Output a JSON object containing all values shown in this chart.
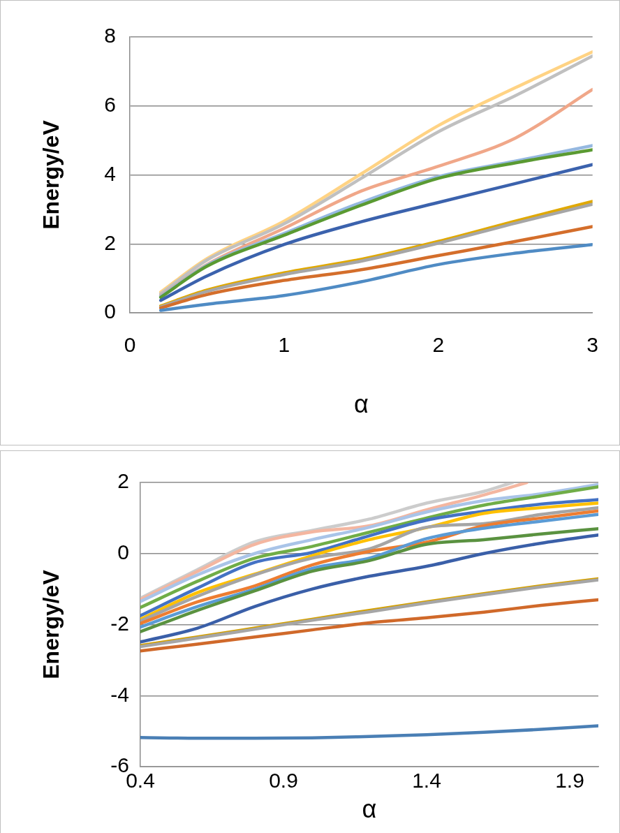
{
  "chart_data": [
    {
      "type": "line",
      "xlabel": "α",
      "ylabel": "Energy/eV",
      "x": [
        0.2,
        0.5,
        1,
        1.5,
        2,
        2.5,
        3
      ],
      "xlim": [
        0,
        3
      ],
      "xticks": [
        0,
        1,
        2,
        3
      ],
      "ylim": [
        0,
        8
      ],
      "yticks": [
        0,
        2,
        4,
        6,
        8
      ],
      "grid": "y",
      "marker": "none",
      "series": [
        {
          "color": "#4f8bc4",
          "values": [
            0.07,
            0.25,
            0.5,
            0.9,
            1.4,
            1.73,
            1.98
          ]
        },
        {
          "color": "#d46e2b",
          "values": [
            0.14,
            0.53,
            0.94,
            1.25,
            1.66,
            2.07,
            2.5
          ]
        },
        {
          "color": "#a6a6a6",
          "values": [
            0.17,
            0.62,
            1.11,
            1.5,
            2.02,
            2.6,
            3.15
          ]
        },
        {
          "color": "#e0a800",
          "values": [
            0.2,
            0.66,
            1.16,
            1.55,
            2.07,
            2.66,
            3.23
          ]
        },
        {
          "color": "#3b62ad",
          "values": [
            0.36,
            1.07,
            1.98,
            2.64,
            3.2,
            3.75,
            4.3
          ]
        },
        {
          "color": "#5a9a32",
          "values": [
            0.45,
            1.35,
            2.25,
            3.12,
            3.9,
            4.35,
            4.73
          ]
        },
        {
          "color": "#95b8e0",
          "values": [
            0.48,
            1.38,
            2.3,
            3.2,
            3.95,
            4.4,
            4.85
          ]
        },
        {
          "color": "#f0a789",
          "values": [
            0.5,
            1.4,
            2.45,
            3.53,
            4.25,
            5.07,
            6.48
          ]
        },
        {
          "color": "#c0c0c0",
          "values": [
            0.55,
            1.53,
            2.58,
            3.9,
            5.25,
            6.3,
            7.45
          ]
        },
        {
          "color": "#ffd384",
          "values": [
            0.6,
            1.57,
            2.66,
            4.03,
            5.43,
            6.53,
            7.57
          ]
        }
      ]
    },
    {
      "type": "line",
      "xlabel": "α",
      "ylabel": "Energy/eV",
      "x": [
        0.4,
        0.6,
        0.8,
        1.0,
        1.2,
        1.4,
        1.6,
        1.8,
        2.0
      ],
      "xlim": [
        0.4,
        2.0
      ],
      "xticks": [
        0.4,
        0.9,
        1.4,
        1.9
      ],
      "ylim": [
        -6,
        2
      ],
      "yticks": [
        -6,
        -4,
        -2,
        0,
        2
      ],
      "grid": "y",
      "marker": "none",
      "series": [
        {
          "color": "#4a7fb5",
          "values": [
            -5.18,
            -5.2,
            -5.2,
            -5.19,
            -5.15,
            -5.1,
            -5.03,
            -4.95,
            -4.85
          ]
        },
        {
          "color": "#d0692a",
          "values": [
            -2.74,
            -2.55,
            -2.35,
            -2.15,
            -1.95,
            -1.81,
            -1.65,
            -1.46,
            -1.3
          ]
        },
        {
          "color": "#a6a6a6",
          "values": [
            -2.62,
            -2.38,
            -2.13,
            -1.88,
            -1.64,
            -1.39,
            -1.16,
            -0.94,
            -0.74
          ]
        },
        {
          "color": "#d4a000",
          "values": [
            -2.59,
            -2.35,
            -2.1,
            -1.85,
            -1.6,
            -1.36,
            -1.13,
            -0.91,
            -0.71
          ]
        },
        {
          "color": "#3a5fa8",
          "values": [
            -2.49,
            -2.1,
            -1.49,
            -1.0,
            -0.64,
            -0.36,
            0.0,
            0.29,
            0.52
          ]
        },
        {
          "color": "#5a9240",
          "values": [
            -2.2,
            -1.6,
            -1.05,
            -0.5,
            -0.2,
            0.26,
            0.39,
            0.55,
            0.7
          ]
        },
        {
          "color": "#5b9bd5",
          "values": [
            -2.07,
            -1.49,
            -1.0,
            -0.42,
            -0.13,
            0.42,
            0.71,
            0.91,
            1.1
          ]
        },
        {
          "color": "#ed7d31",
          "values": [
            -1.97,
            -1.36,
            -0.91,
            -0.32,
            0.06,
            0.32,
            0.78,
            1.0,
            1.2
          ]
        },
        {
          "color": "#a5a5a5",
          "values": [
            -1.9,
            -1.2,
            -0.6,
            -0.13,
            0.13,
            0.74,
            0.84,
            1.1,
            1.29
          ]
        },
        {
          "color": "#ffc000",
          "values": [
            -1.85,
            -1.1,
            -0.58,
            -0.06,
            0.39,
            0.73,
            1.13,
            1.29,
            1.42
          ]
        },
        {
          "color": "#4472c4",
          "values": [
            -1.75,
            -0.97,
            -0.25,
            0.03,
            0.5,
            0.94,
            1.19,
            1.39,
            1.52
          ]
        },
        {
          "color": "#70ad47",
          "values": [
            -1.52,
            -0.78,
            -0.13,
            0.2,
            0.6,
            1.0,
            1.36,
            1.62,
            1.88
          ]
        },
        {
          "color": "#a9c4e8",
          "values": [
            -1.35,
            -0.6,
            0.0,
            0.39,
            0.74,
            1.17,
            1.49,
            1.68,
            1.94
          ]
        },
        {
          "color": "#f4b6a0",
          "x": [
            0.4,
            0.6,
            0.8,
            1.0,
            1.2,
            1.4,
            1.6,
            1.7,
            1.75
          ],
          "values": [
            -1.3,
            -0.5,
            0.26,
            0.61,
            0.78,
            1.23,
            1.65,
            1.88,
            2.0
          ]
        },
        {
          "color": "#cccccc",
          "x": [
            0.4,
            0.6,
            0.8,
            1.0,
            1.2,
            1.4,
            1.6,
            1.7
          ],
          "values": [
            -1.26,
            -0.45,
            0.33,
            0.65,
            0.97,
            1.42,
            1.75,
            2.0
          ]
        }
      ]
    }
  ]
}
